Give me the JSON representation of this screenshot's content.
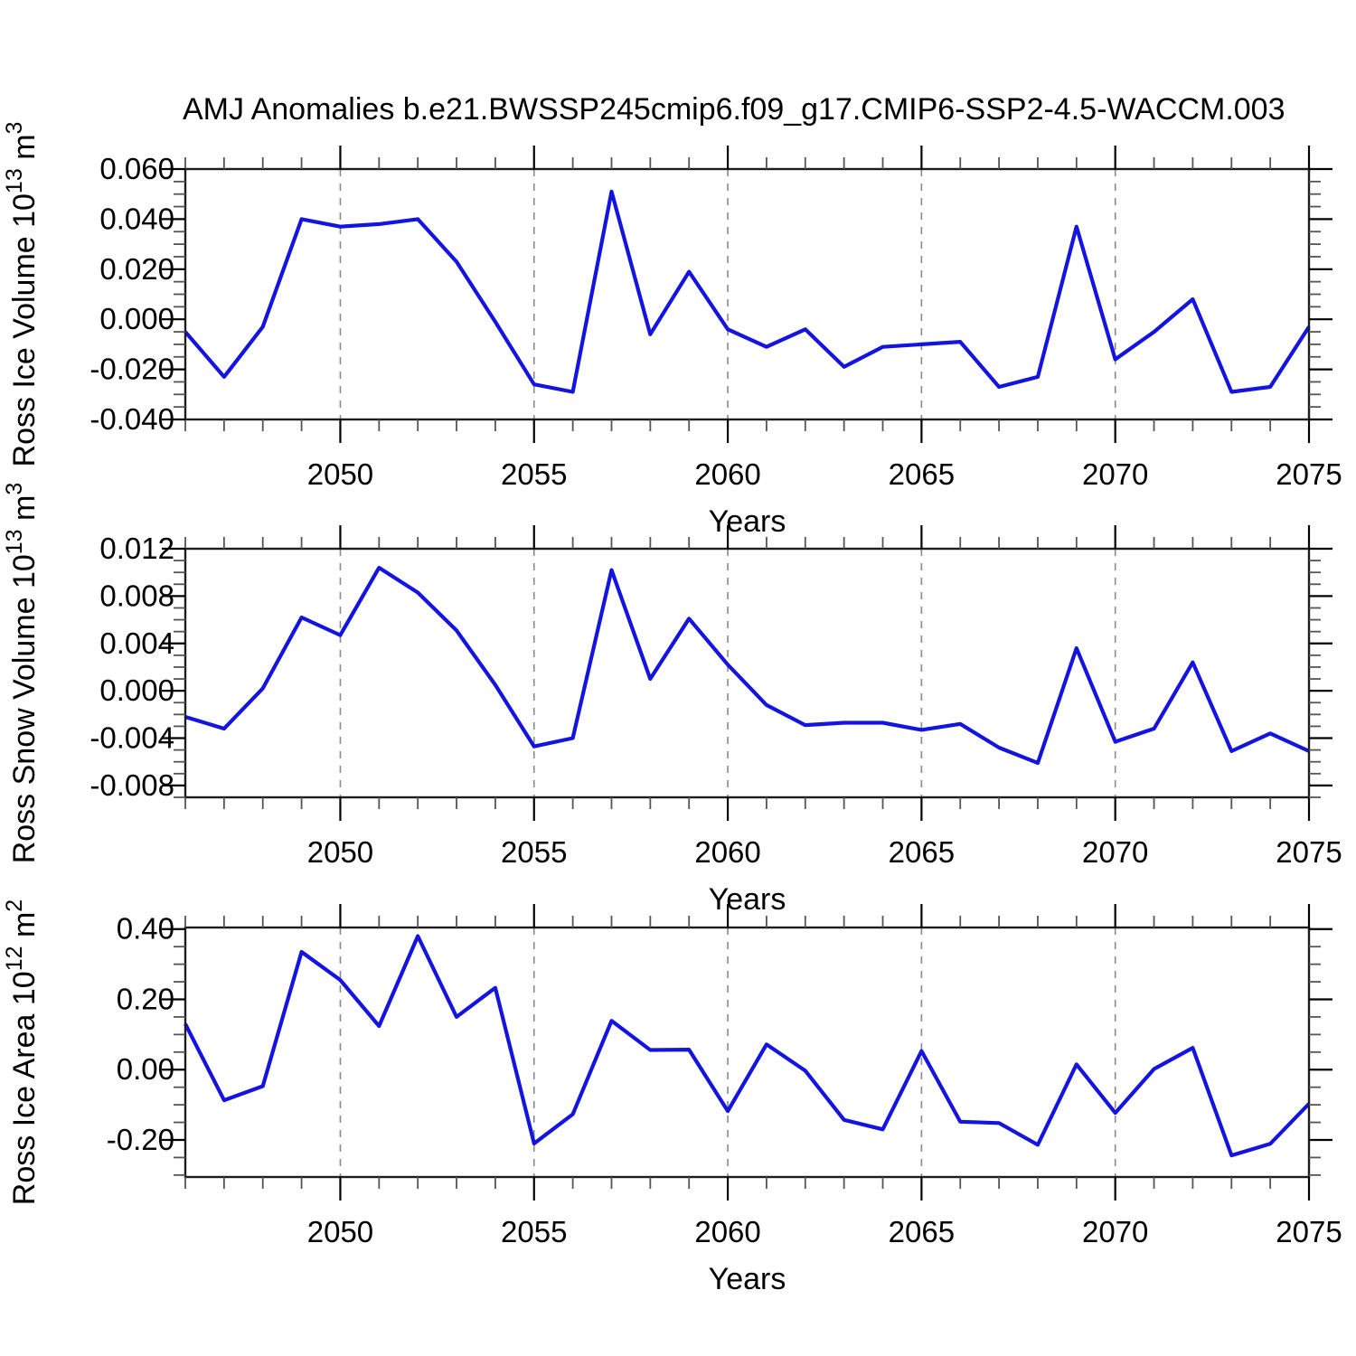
{
  "title": "AMJ Anomalies b.e21.BWSSP245cmip6.f09_g17.CMIP6-SSP2-4.5-WACCM.003",
  "colors": {
    "line": "#1414e0",
    "frame": "#1c1c1c",
    "tick_major": "#000000",
    "tick_minor": "#555555",
    "grid_dashed": "#8a8a8a",
    "text": "#000000",
    "background": "#ffffff"
  },
  "xlabel": "Years",
  "xlim": [
    2046,
    2075
  ],
  "x_major_ticks": [
    2050,
    2055,
    2060,
    2065,
    2070,
    2075
  ],
  "years": [
    2046,
    2047,
    2048,
    2049,
    2050,
    2051,
    2052,
    2053,
    2054,
    2055,
    2056,
    2057,
    2058,
    2059,
    2060,
    2061,
    2062,
    2063,
    2064,
    2065,
    2066,
    2067,
    2068,
    2069,
    2070,
    2071,
    2072,
    2073,
    2074,
    2075
  ],
  "chart_data": [
    {
      "type": "line",
      "name": "ross-ice-volume",
      "ylabel_parts": [
        {
          "t": "Ross Ice Volume 10",
          "sup": false
        },
        {
          "t": "13",
          "sup": true
        },
        {
          "t": " m",
          "sup": false
        },
        {
          "t": "3",
          "sup": true
        }
      ],
      "ylim": [
        -0.04,
        0.06
      ],
      "ytick_values": [
        0.06,
        0.04,
        0.02,
        0.0,
        -0.02,
        -0.04
      ],
      "ytick_labels": [
        "0.060",
        "0.040",
        "0.020",
        "0.000",
        "-0.020",
        "-0.040"
      ],
      "y_minor_step": 0.005,
      "values": [
        -0.005,
        -0.023,
        -0.003,
        0.04,
        0.037,
        0.038,
        0.04,
        0.023,
        -0.001,
        -0.026,
        -0.029,
        0.051,
        -0.006,
        0.019,
        -0.004,
        -0.011,
        -0.004,
        -0.019,
        -0.011,
        -0.01,
        -0.009,
        -0.027,
        -0.023,
        0.037,
        -0.016,
        -0.005,
        0.008,
        -0.029,
        -0.027,
        -0.003
      ]
    },
    {
      "type": "line",
      "name": "ross-snow-volume",
      "ylabel_parts": [
        {
          "t": "Ross Snow Volume 10",
          "sup": false
        },
        {
          "t": "13",
          "sup": true
        },
        {
          "t": " m",
          "sup": false
        },
        {
          "t": "3",
          "sup": true
        }
      ],
      "ylim": [
        -0.009,
        0.012
      ],
      "ytick_values": [
        0.012,
        0.008,
        0.004,
        0.0,
        -0.004,
        -0.008
      ],
      "ytick_labels": [
        "0.012",
        "0.008",
        "0.004",
        "0.000",
        "-0.004",
        "-0.008"
      ],
      "y_minor_step": 0.001,
      "values": [
        -0.0022,
        -0.0032,
        0.0002,
        0.0062,
        0.0047,
        0.0104,
        0.0083,
        0.0051,
        0.0005,
        -0.0047,
        -0.004,
        0.0102,
        0.001,
        0.0061,
        0.0022,
        -0.0012,
        -0.0029,
        -0.0027,
        -0.0027,
        -0.0033,
        -0.0028,
        -0.0048,
        -0.0061,
        0.0036,
        -0.0043,
        -0.0032,
        0.0024,
        -0.0051,
        -0.0036,
        -0.0051
      ]
    },
    {
      "type": "line",
      "name": "ross-ice-area",
      "ylabel_parts": [
        {
          "t": "Ross Ice Area 10",
          "sup": false
        },
        {
          "t": "12",
          "sup": true
        },
        {
          "t": " m",
          "sup": false
        },
        {
          "t": "2",
          "sup": true
        }
      ],
      "ylim": [
        -0.3055,
        0.4045
      ],
      "ytick_values": [
        0.4,
        0.2,
        0.0,
        -0.2
      ],
      "ytick_labels": [
        "0.40",
        "0.20",
        "0.00",
        "-0.20"
      ],
      "y_minor_step": 0.05,
      "values": [
        0.13,
        -0.087,
        -0.047,
        0.335,
        0.255,
        0.124,
        0.38,
        0.15,
        0.233,
        -0.21,
        -0.127,
        0.139,
        0.056,
        0.057,
        -0.118,
        0.072,
        -0.003,
        -0.143,
        -0.17,
        0.053,
        -0.148,
        -0.152,
        -0.214,
        0.015,
        -0.123,
        0.002,
        0.062,
        -0.244,
        -0.211,
        -0.097
      ]
    }
  ]
}
